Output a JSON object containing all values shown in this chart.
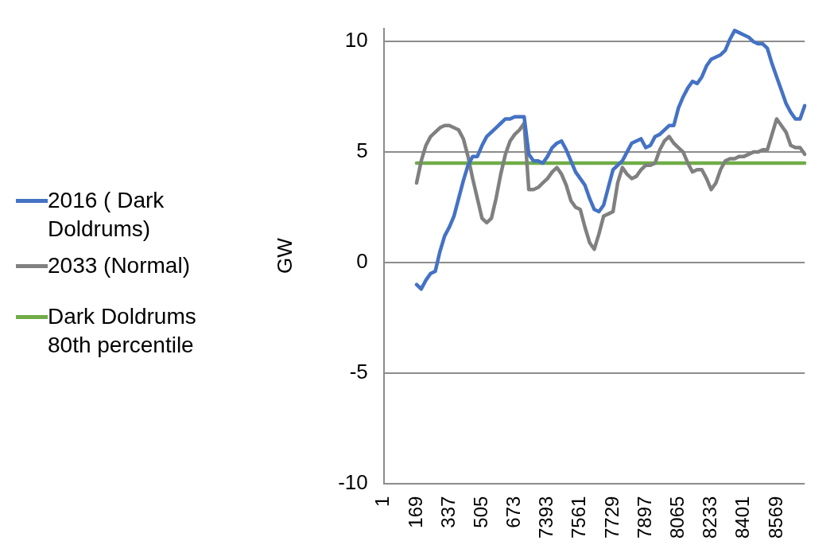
{
  "chart_data": {
    "type": "line",
    "ylabel": "GW",
    "categories": [
      "1",
      null,
      null,
      null,
      null,
      null,
      null,
      "169",
      null,
      null,
      null,
      null,
      null,
      null,
      "337",
      null,
      null,
      null,
      null,
      null,
      null,
      "505",
      null,
      null,
      null,
      null,
      null,
      null,
      "673",
      null,
      null,
      null,
      null,
      null,
      null,
      "7393",
      null,
      null,
      null,
      null,
      null,
      null,
      "7561",
      null,
      null,
      null,
      null,
      null,
      null,
      "7729",
      null,
      null,
      null,
      null,
      null,
      null,
      "7897",
      null,
      null,
      null,
      null,
      null,
      null,
      "8065",
      null,
      null,
      null,
      null,
      null,
      null,
      "8233",
      null,
      null,
      null,
      null,
      null,
      null,
      "8401",
      null,
      null,
      null,
      null,
      null,
      null,
      "8569",
      null,
      null,
      null,
      null,
      null,
      null
    ],
    "series": [
      {
        "name": "2016 ( Dark Doldrums)",
        "color": "#4472c4",
        "values": [
          null,
          null,
          null,
          null,
          null,
          null,
          null,
          -1.0,
          -1.2,
          -0.8,
          -0.5,
          -0.4,
          0.5,
          1.2,
          1.6,
          2.1,
          2.9,
          3.7,
          4.4,
          4.8,
          4.8,
          5.3,
          5.7,
          5.9,
          6.1,
          6.3,
          6.5,
          6.5,
          6.6,
          6.6,
          6.6,
          4.9,
          4.6,
          4.6,
          4.5,
          4.8,
          5.2,
          5.4,
          5.5,
          5.1,
          4.6,
          4.1,
          3.8,
          3.5,
          2.9,
          2.4,
          2.3,
          2.6,
          3.4,
          4.2,
          4.4,
          4.6,
          5.0,
          5.4,
          5.5,
          5.6,
          5.2,
          5.3,
          5.7,
          5.8,
          6.0,
          6.2,
          6.2,
          7.0,
          7.5,
          7.9,
          8.2,
          8.1,
          8.4,
          8.9,
          9.2,
          9.3,
          9.4,
          9.6,
          10.1,
          10.5,
          10.4,
          10.3,
          10.2,
          10.0,
          9.9,
          9.9,
          9.7,
          9.0,
          8.4,
          7.8,
          7.2,
          6.8,
          6.5,
          6.5,
          7.1
        ]
      },
      {
        "name": "2033 (Normal)",
        "color": "#808080",
        "values": [
          null,
          null,
          null,
          null,
          null,
          null,
          null,
          3.6,
          4.6,
          5.3,
          5.7,
          5.9,
          6.1,
          6.2,
          6.2,
          6.1,
          6.0,
          5.6,
          4.8,
          3.8,
          2.9,
          2.0,
          1.8,
          2.0,
          2.9,
          4.0,
          4.9,
          5.5,
          5.8,
          6.0,
          6.3,
          3.3,
          3.3,
          3.4,
          3.6,
          3.8,
          4.1,
          4.3,
          4.0,
          3.5,
          2.8,
          2.5,
          2.4,
          1.6,
          0.9,
          0.6,
          1.3,
          2.1,
          2.2,
          2.3,
          3.6,
          4.3,
          4.0,
          3.8,
          3.9,
          4.2,
          4.4,
          4.4,
          4.5,
          5.1,
          5.5,
          5.7,
          5.4,
          5.2,
          5.0,
          4.5,
          4.1,
          4.2,
          4.2,
          3.8,
          3.3,
          3.6,
          4.2,
          4.6,
          4.7,
          4.7,
          4.8,
          4.8,
          4.9,
          5.0,
          5.0,
          5.1,
          5.1,
          5.8,
          6.5,
          6.2,
          5.9,
          5.3,
          5.2,
          5.2,
          4.9
        ]
      },
      {
        "name": "Dark Doldrums 80th percentile",
        "color": "#70ad47",
        "values": [
          null,
          null,
          null,
          null,
          null,
          null,
          null,
          4.5,
          4.5,
          4.5,
          4.5,
          4.5,
          4.5,
          4.5,
          4.5,
          4.5,
          4.5,
          4.5,
          4.5,
          4.5,
          4.5,
          4.5,
          4.5,
          4.5,
          4.5,
          4.5,
          4.5,
          4.5,
          4.5,
          4.5,
          4.5,
          4.5,
          4.5,
          4.5,
          4.5,
          4.5,
          4.5,
          4.5,
          4.5,
          4.5,
          4.5,
          4.5,
          4.5,
          4.5,
          4.5,
          4.5,
          4.5,
          4.5,
          4.5,
          4.5,
          4.5,
          4.5,
          4.5,
          4.5,
          4.5,
          4.5,
          4.5,
          4.5,
          4.5,
          4.5,
          4.5,
          4.5,
          4.5,
          4.5,
          4.5,
          4.5,
          4.5,
          4.5,
          4.5,
          4.5,
          4.5,
          4.5,
          4.5,
          4.5,
          4.5,
          4.5,
          4.5,
          4.5,
          4.5,
          4.5,
          4.5,
          4.5,
          4.5,
          4.5,
          4.5,
          4.5,
          4.5,
          4.5,
          4.5,
          4.5,
          4.5
        ]
      }
    ],
    "ylim": [
      -10,
      10.6
    ],
    "yticks": [
      -10,
      -5,
      0,
      5,
      10
    ],
    "grid": "y",
    "legend": "left",
    "marker": "none",
    "line_style": "solid"
  }
}
